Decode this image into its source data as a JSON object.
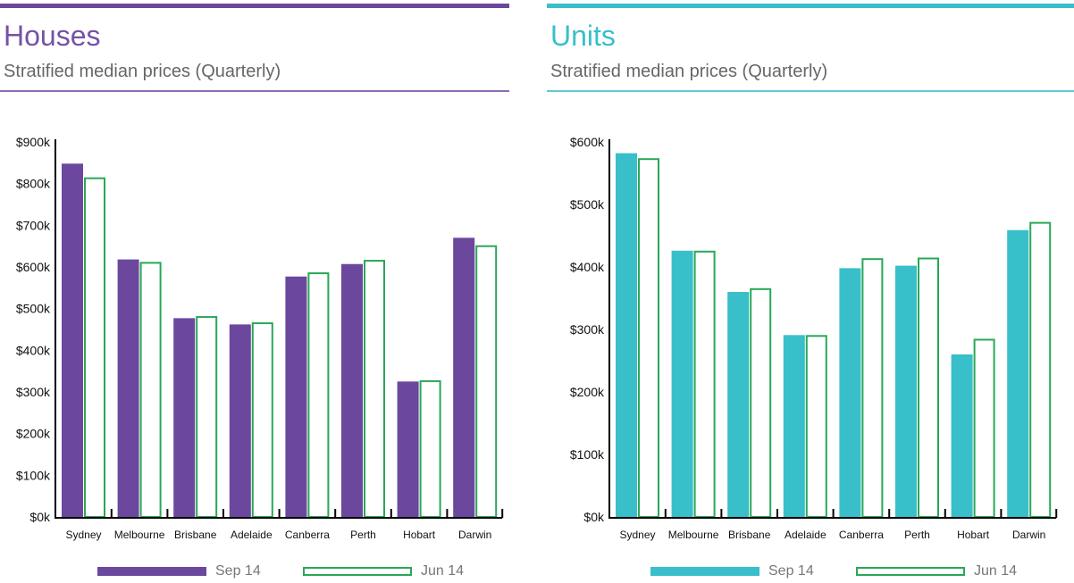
{
  "colors": {
    "houses": "#6b479d",
    "units": "#38bfca",
    "jun_outline": "#27a857",
    "axis": "#000000"
  },
  "chart_data": [
    {
      "type": "bar",
      "title": "Houses",
      "subtitle": "Stratified median prices (Quarterly)",
      "categories": [
        "Sydney",
        "Melbourne",
        "Brisbane",
        "Adelaide",
        "Canberra",
        "Perth",
        "Hobart",
        "Darwin"
      ],
      "series": [
        {
          "name": "Sep 14",
          "values": [
            848,
            618,
            477,
            462,
            577,
            607,
            325,
            670
          ]
        },
        {
          "name": "Jun 14",
          "values": [
            815,
            612,
            482,
            467,
            587,
            617,
            328,
            652
          ]
        }
      ],
      "yticks": [
        "$0k",
        "$100k",
        "$200k",
        "$300k",
        "$400k",
        "$500k",
        "$600k",
        "$700k",
        "$800k",
        "$900k"
      ],
      "ylim": [
        0,
        900
      ],
      "legend_position": "bottom",
      "grid": false
    },
    {
      "type": "bar",
      "title": "Units",
      "subtitle": "Stratified median prices (Quarterly)",
      "categories": [
        "Sydney",
        "Melbourne",
        "Brisbane",
        "Adelaide",
        "Canberra",
        "Perth",
        "Hobart",
        "Darwin"
      ],
      "series": [
        {
          "name": "Sep 14",
          "values": [
            582,
            426,
            360,
            291,
            398,
            402,
            260,
            459
          ]
        },
        {
          "name": "Jun 14",
          "values": [
            574,
            426,
            366,
            291,
            414,
            415,
            285,
            472
          ]
        }
      ],
      "yticks": [
        "$0k",
        "$100k",
        "$200k",
        "$300k",
        "$400k",
        "$500k",
        "$600k"
      ],
      "ylim": [
        0,
        600
      ],
      "legend_position": "bottom",
      "grid": false
    }
  ]
}
